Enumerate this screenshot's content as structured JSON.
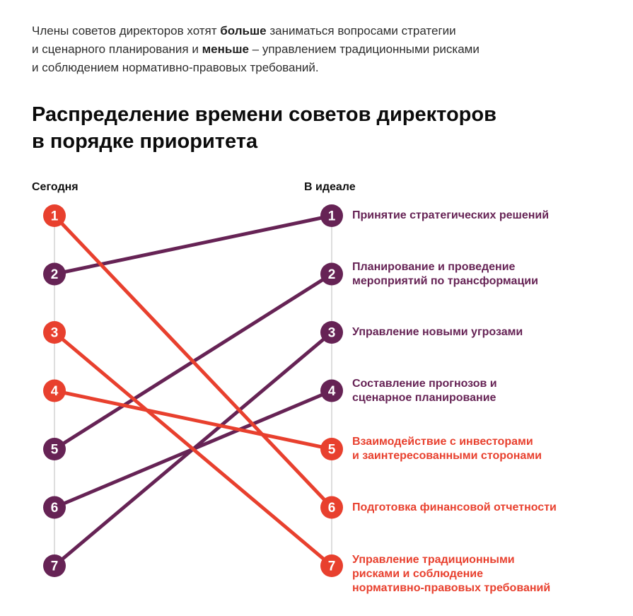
{
  "intro": {
    "lines": [
      {
        "pre": "Члены советов директоров хотят ",
        "bold": "больше",
        "post": " заниматься вопросами стратегии"
      },
      {
        "pre": "и сценарного планирования и ",
        "bold": "меньше",
        "post": " – управлением традиционными рисками"
      },
      {
        "pre": "и соблюдением нормативно-правовых требований.",
        "bold": "",
        "post": ""
      }
    ]
  },
  "title": {
    "line1": "Распределение времени советов директоров",
    "line2": "в порядке приоритета"
  },
  "chart_data": {
    "type": "slope",
    "columns": [
      {
        "key": "today",
        "label": "Сегодня"
      },
      {
        "key": "ideal",
        "label": "В идеале"
      }
    ],
    "rank_range": [
      1,
      7
    ],
    "colors": {
      "red": "#e8402e",
      "purple": "#662355",
      "axis": "#dedede",
      "node_number": "#ffffff"
    },
    "legend_position": "none",
    "grid": "off",
    "items": [
      {
        "label": "Принятие стратегических решений",
        "label_lines": [
          "Принятие стратегических решений"
        ],
        "today_rank": 2,
        "ideal_rank": 1,
        "color": "purple"
      },
      {
        "label": "Планирование и проведение мероприятий по трансформации",
        "label_lines": [
          "Планирование и проведение",
          "мероприятий по трансформации"
        ],
        "today_rank": 5,
        "ideal_rank": 2,
        "color": "purple"
      },
      {
        "label": "Управление новыми угрозами",
        "label_lines": [
          "Управление новыми угрозами"
        ],
        "today_rank": 7,
        "ideal_rank": 3,
        "color": "purple"
      },
      {
        "label": "Составление прогнозов и сценарное планирование",
        "label_lines": [
          "Составление прогнозов и",
          "сценарное планирование"
        ],
        "today_rank": 6,
        "ideal_rank": 4,
        "color": "purple"
      },
      {
        "label": "Взаимодействие с инвесторами и заинтересованными сторонами",
        "label_lines": [
          "Взаимодействие с инвесторами",
          "и заинтересованными сторонами"
        ],
        "today_rank": 4,
        "ideal_rank": 5,
        "color": "red"
      },
      {
        "label": "Подготовка финансовой отчетности",
        "label_lines": [
          "Подготовка финансовой отчетности"
        ],
        "today_rank": 1,
        "ideal_rank": 6,
        "color": "red"
      },
      {
        "label": "Управление традиционными рисками и соблюдение нормативно-правовых требований",
        "label_lines": [
          "Управление традиционными",
          "рисками и соблюдение",
          "нормативно-правовых требований"
        ],
        "today_rank": 3,
        "ideal_rank": 7,
        "color": "red"
      }
    ]
  }
}
